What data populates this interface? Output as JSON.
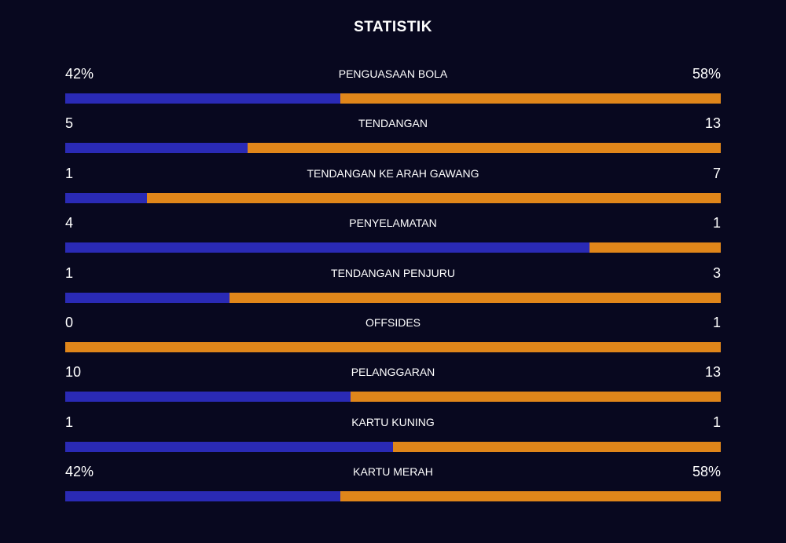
{
  "title": "STATISTIK",
  "colors": {
    "background": "#08081f",
    "home": "#2a2ab5",
    "away": "#e0861a",
    "text": "#ffffff"
  },
  "chart_data": {
    "type": "bar",
    "orientation": "horizontal-stacked",
    "title": "STATISTIK",
    "categories": [
      "PENGUASAAN BOLA",
      "TENDANGAN",
      "TENDANGAN KE ARAH GAWANG",
      "PENYELAMATAN",
      "TENDANGAN PENJURU",
      "OFFSIDES",
      "PELANGGARAN",
      "KARTU KUNING",
      "KARTU MERAH"
    ],
    "series": [
      {
        "values": [
          42,
          5,
          1,
          4,
          1,
          0,
          10,
          1,
          42
        ]
      },
      {
        "values": [
          58,
          13,
          7,
          1,
          3,
          1,
          13,
          1,
          58
        ]
      }
    ],
    "display_left": [
      "42%",
      "5",
      "1",
      "4",
      "1",
      "0",
      "10",
      "1",
      "42%"
    ],
    "display_right": [
      "58%",
      "13",
      "7",
      "1",
      "3",
      "1",
      "13",
      "1",
      "58%"
    ]
  }
}
